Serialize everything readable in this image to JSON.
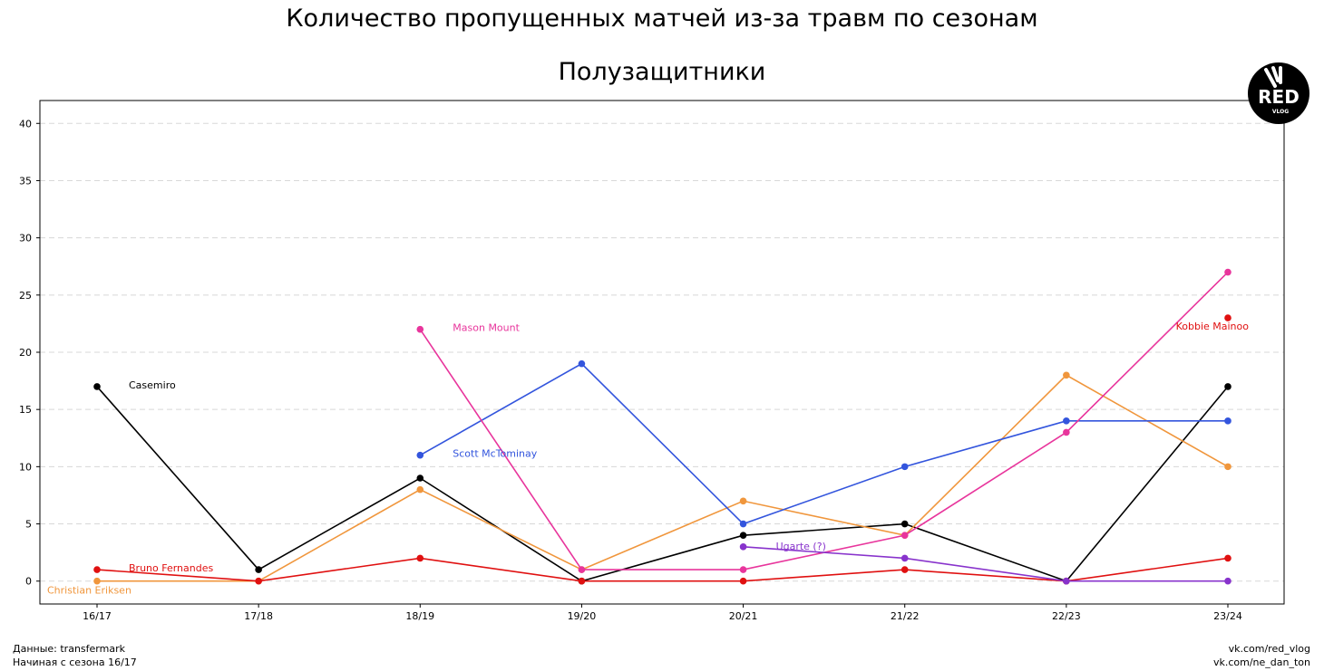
{
  "titles": {
    "main": "Количество пропущенных матчей из-за травм по сезонам",
    "sub": "Полузащитники"
  },
  "footer": {
    "source": "Данные: transfermark",
    "since": "Начиная с сезона 16/17",
    "link1": "vk.com/red_vlog",
    "link2": "vk.com/ne_dan_ton"
  },
  "logo": {
    "text": "RED",
    "subtext": "VLOG"
  },
  "chart_data": {
    "type": "line",
    "title": "Количество пропущенных матчей из-за травм по сезонам",
    "subtitle": "Полузащитники",
    "categories": [
      "16/17",
      "17/18",
      "18/19",
      "19/20",
      "20/21",
      "21/22",
      "22/23",
      "23/24"
    ],
    "yticks": [
      0,
      5,
      10,
      15,
      20,
      25,
      30,
      35,
      40
    ],
    "ylim": [
      -2,
      42
    ],
    "grid": "horizontal dashed",
    "series": [
      {
        "name": "Casemiro",
        "color": "#000000",
        "values": [
          17,
          1,
          9,
          0,
          4,
          5,
          0,
          17
        ]
      },
      {
        "name": "Christian Eriksen",
        "color": "#f0963c",
        "values": [
          0,
          0,
          8,
          1,
          7,
          4,
          18,
          10
        ]
      },
      {
        "name": "Bruno Fernandes",
        "color": "#e01010",
        "values": [
          1,
          0,
          2,
          0,
          0,
          1,
          0,
          2
        ]
      },
      {
        "name": "Scott McTominay",
        "color": "#3355dd",
        "values": [
          null,
          null,
          11,
          19,
          5,
          10,
          14,
          14
        ]
      },
      {
        "name": "Mason Mount",
        "color": "#e8359c",
        "values": [
          null,
          null,
          22,
          1,
          1,
          4,
          13,
          27
        ]
      },
      {
        "name": "Ugarte (?)",
        "color": "#8833cc",
        "values": [
          null,
          null,
          null,
          null,
          3,
          2,
          0,
          0
        ]
      },
      {
        "name": "Kobbie Mainoo",
        "color": "#e01010",
        "values": [
          null,
          null,
          null,
          null,
          null,
          null,
          null,
          23
        ]
      }
    ]
  }
}
